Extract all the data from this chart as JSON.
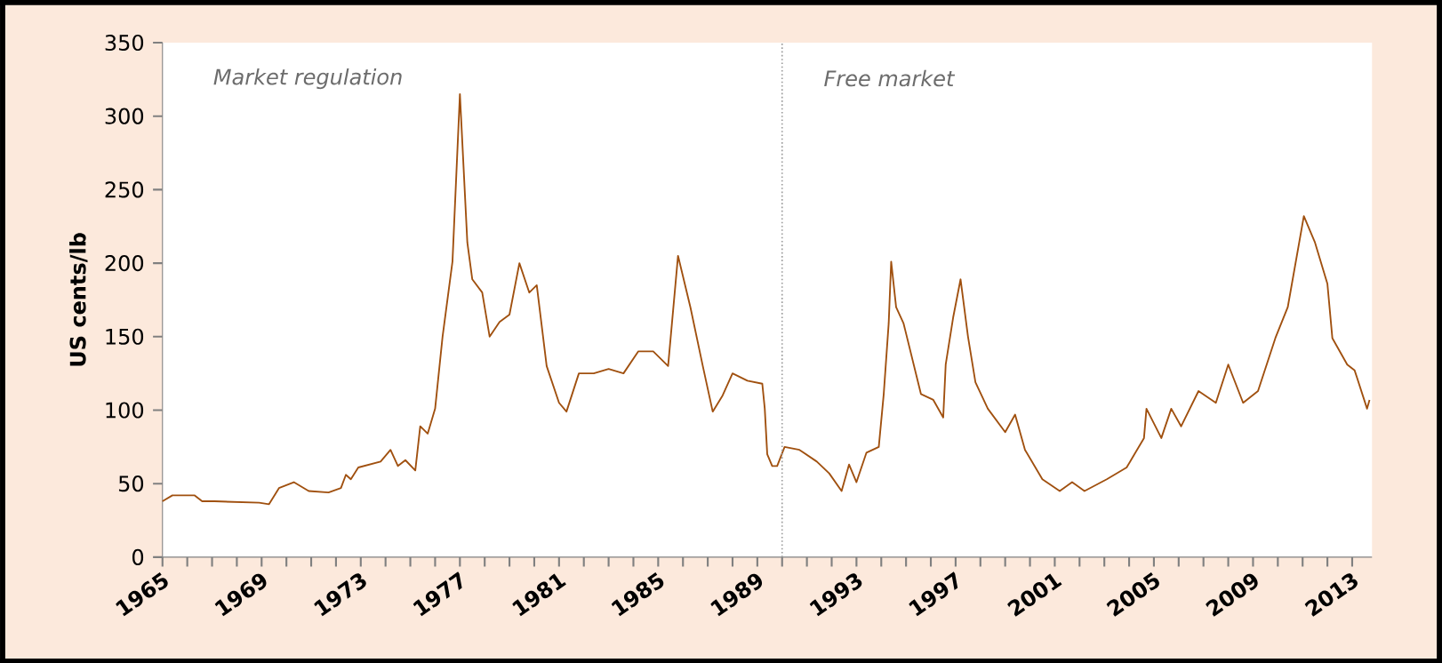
{
  "chart_data": {
    "type": "line",
    "ylabel": "US cents/lb",
    "x": [
      1965.0,
      1965.4,
      1966.3,
      1966.6,
      1967.1,
      1968.9,
      1969.3,
      1969.7,
      1970.3,
      1970.9,
      1971.7,
      1972.2,
      1972.4,
      1972.6,
      1972.9,
      1973.8,
      1974.2,
      1974.5,
      1974.8,
      1975.2,
      1975.4,
      1975.7,
      1976.0,
      1976.3,
      1976.7,
      1977.0,
      1977.3,
      1977.5,
      1977.9,
      1978.2,
      1978.6,
      1979.0,
      1979.4,
      1979.8,
      1980.1,
      1980.5,
      1981.0,
      1981.3,
      1981.8,
      1982.4,
      1983.0,
      1983.6,
      1984.2,
      1984.8,
      1985.4,
      1985.8,
      1986.3,
      1986.8,
      1987.2,
      1987.6,
      1988.0,
      1988.6,
      1989.2,
      1989.3,
      1989.4,
      1989.6,
      1989.8,
      1990.1,
      1990.7,
      1991.4,
      1991.9,
      1992.4,
      1992.7,
      1993.0,
      1993.4,
      1993.9,
      1994.1,
      1994.3,
      1994.4,
      1994.6,
      1994.9,
      1995.6,
      1996.1,
      1996.5,
      1996.6,
      1996.9,
      1997.2,
      1997.5,
      1997.8,
      1998.3,
      1999.0,
      1999.4,
      1999.8,
      2000.5,
      2001.2,
      2001.7,
      2002.2,
      2003.1,
      2003.9,
      2004.6,
      2004.7,
      2005.3,
      2005.7,
      2006.1,
      2006.8,
      2007.5,
      2008.0,
      2008.6,
      2009.2,
      2009.9,
      2010.4,
      2011.05,
      2011.5,
      2012.0,
      2012.2,
      2012.8,
      2013.1,
      2013.6,
      2013.7
    ],
    "series": [
      {
        "color": "#a0500f",
        "values": [
          38,
          42,
          42,
          38,
          38,
          37,
          36,
          47,
          51,
          45,
          44,
          47,
          56,
          53,
          61,
          65,
          73,
          62,
          66,
          59,
          89,
          84,
          101,
          150,
          201,
          315,
          214,
          189,
          180,
          150,
          160,
          165,
          200,
          180,
          185,
          130,
          105,
          99,
          125,
          125,
          128,
          125,
          140,
          140,
          130,
          205,
          170,
          130,
          99,
          110,
          125,
          120,
          118,
          101,
          70,
          62,
          62,
          75,
          73,
          65,
          57,
          45,
          63,
          51,
          71,
          75,
          111,
          159,
          201,
          170,
          159,
          111,
          107,
          95,
          131,
          163,
          189,
          150,
          119,
          101,
          85,
          97,
          73,
          53,
          45,
          51,
          45,
          53,
          61,
          81,
          101,
          81,
          101,
          89,
          113,
          105,
          131,
          105,
          113,
          149,
          170,
          232,
          214,
          186,
          149,
          131,
          127,
          101,
          107
        ]
      }
    ],
    "xlim": [
      1965,
      2013.8
    ],
    "ylim": [
      0,
      350
    ],
    "xticks": [
      1965,
      {
        "value": 1966,
        "label": null
      },
      {
        "value": 1967,
        "label": null
      },
      {
        "value": 1968,
        "label": null
      },
      1969,
      {
        "value": 1970,
        "label": null
      },
      {
        "value": 1971,
        "label": null
      },
      {
        "value": 1972,
        "label": null
      },
      1973,
      {
        "value": 1974,
        "label": null
      },
      {
        "value": 1975,
        "label": null
      },
      {
        "value": 1976,
        "label": null
      },
      1977,
      {
        "value": 1978,
        "label": null
      },
      {
        "value": 1979,
        "label": null
      },
      {
        "value": 1980,
        "label": null
      },
      1981,
      {
        "value": 1982,
        "label": null
      },
      {
        "value": 1983,
        "label": null
      },
      {
        "value": 1984,
        "label": null
      },
      1985,
      {
        "value": 1986,
        "label": null
      },
      {
        "value": 1987,
        "label": null
      },
      {
        "value": 1988,
        "label": null
      },
      1989,
      {
        "value": 1990,
        "label": null
      },
      {
        "value": 1991,
        "label": null
      },
      {
        "value": 1992,
        "label": null
      },
      1993,
      {
        "value": 1994,
        "label": null
      },
      {
        "value": 1995,
        "label": null
      },
      {
        "value": 1996,
        "label": null
      },
      1997,
      {
        "value": 1998,
        "label": null
      },
      {
        "value": 1999,
        "label": null
      },
      {
        "value": 2000,
        "label": null
      },
      2001,
      {
        "value": 2002,
        "label": null
      },
      {
        "value": 2003,
        "label": null
      },
      {
        "value": 2004,
        "label": null
      },
      2005,
      {
        "value": 2006,
        "label": null
      },
      {
        "value": 2007,
        "label": null
      },
      {
        "value": 2008,
        "label": null
      },
      2009,
      {
        "value": 2010,
        "label": null
      },
      {
        "value": 2011,
        "label": null
      },
      {
        "value": 2012,
        "label": null
      },
      2013
    ],
    "yticks": [
      0,
      50,
      100,
      150,
      200,
      250,
      300,
      350
    ],
    "ref_lines": [
      {
        "axis": "x",
        "value": 1990,
        "color": "#999999",
        "line_style": "dotted"
      }
    ],
    "annotations": [
      "Market regulation",
      "Free market"
    ],
    "grid": false,
    "marker": "none",
    "line_style": "solid"
  }
}
